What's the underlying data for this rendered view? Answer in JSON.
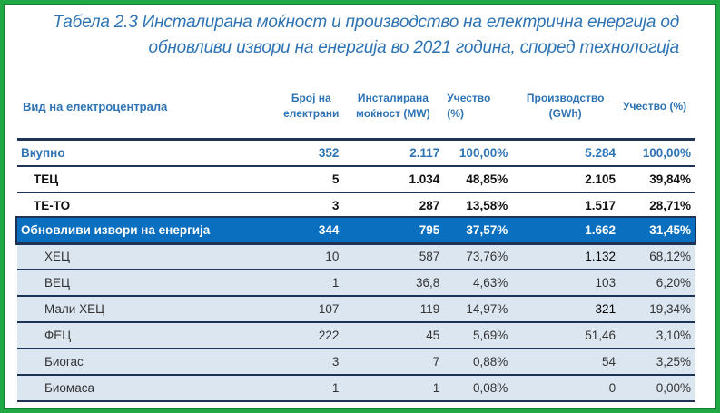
{
  "title": "Табела 2.3 Инсталирана моќност и производство на електрична енергија од обновливи извори на енергија во 2021 година, според технологија",
  "columns": [
    "Вид на електроцентрала",
    "Број на електрани",
    "Инсталирана моќност (MW)",
    "Учество (%)",
    "Производство (GWh)",
    "Учество (%)"
  ],
  "rows": [
    {
      "name": "Вкупно",
      "count": "352",
      "mw": "2.117",
      "mw_share": "100,00%",
      "gwh": "5.284",
      "gwh_share": "100,00%"
    },
    {
      "name": "ТЕЦ",
      "count": "5",
      "mw": "1.034",
      "mw_share": "48,85%",
      "gwh": "2.105",
      "gwh_share": "39,84%"
    },
    {
      "name": "ТЕ-ТО",
      "count": "3",
      "mw": "287",
      "mw_share": "13,58%",
      "gwh": "1.517",
      "gwh_share": "28,71%"
    },
    {
      "name": "Обновливи извори на енергија",
      "count": "344",
      "mw": "795",
      "mw_share": "37,57%",
      "gwh": "1.662",
      "gwh_share": "31,45%"
    },
    {
      "name": "ХЕЦ",
      "count": "10",
      "mw": "587",
      "mw_share": "73,76%",
      "gwh": "1.132",
      "gwh_share": "68,12%"
    },
    {
      "name": "ВЕЦ",
      "count": "1",
      "mw": "36,8",
      "mw_share": "4,63%",
      "gwh": "103",
      "gwh_share": "6,20%"
    },
    {
      "name": "Мали ХЕЦ",
      "count": "107",
      "mw": "119",
      "mw_share": "14,97%",
      "gwh": "321",
      "gwh_share": "19,34%"
    },
    {
      "name": "ФЕЦ",
      "count": "222",
      "mw": "45",
      "mw_share": "5,69%",
      "gwh": "51,46",
      "gwh_share": "3,10%"
    },
    {
      "name": "Биогас",
      "count": "3",
      "mw": "7",
      "mw_share": "0,88%",
      "gwh": "54",
      "gwh_share": "3,25%"
    },
    {
      "name": "Биомаса",
      "count": "1",
      "mw": "1",
      "mw_share": "0,08%",
      "gwh": "0",
      "gwh_share": "0,00%"
    }
  ],
  "colors": {
    "title": "#2e74b5",
    "highlight_row": "#0b6fbf",
    "sub_row": "#dce6f1",
    "border": "#1fa843"
  }
}
